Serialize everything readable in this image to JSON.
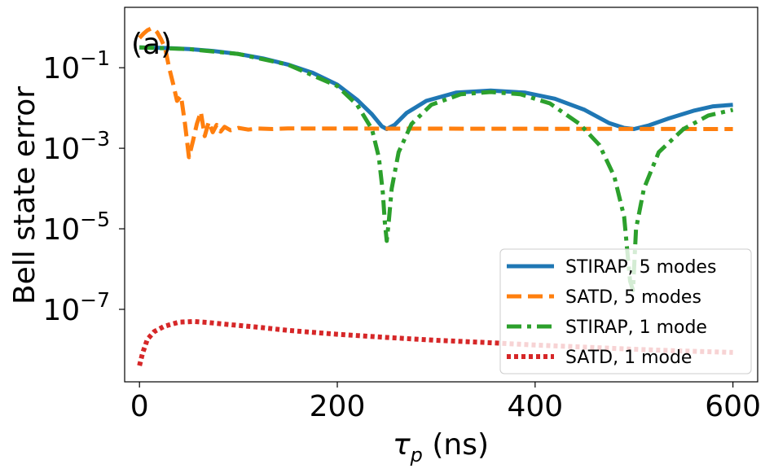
{
  "chart_data": {
    "type": "line",
    "title": "",
    "panel_label": "(a)",
    "xlabel_symbol": "τ",
    "xlabel_sub": "p",
    "xlabel_unit": " (ns)",
    "ylabel": "Bell state error",
    "yscale": "log",
    "xlim": [
      -15,
      625
    ],
    "ylim_exp": [
      -8.8,
      0.5
    ],
    "xticks": [
      0,
      200,
      400,
      600
    ],
    "xtick_labels": [
      "0",
      "200",
      "400",
      "600"
    ],
    "yticks_exp": [
      -1,
      -3,
      -5,
      -7
    ],
    "ytick_base": "10",
    "ytick_exponents": [
      "−1",
      "−3",
      "−5",
      "−7"
    ],
    "legend_position": "lower-right",
    "series": [
      {
        "name": "STIRAP, 5 modes",
        "color": "#1f77b4",
        "style": "solid",
        "points": [
          [
            0,
            0.32
          ],
          [
            25,
            0.31
          ],
          [
            50,
            0.29
          ],
          [
            75,
            0.26
          ],
          [
            100,
            0.22
          ],
          [
            125,
            0.17
          ],
          [
            150,
            0.12
          ],
          [
            175,
            0.075
          ],
          [
            200,
            0.038
          ],
          [
            220,
            0.016
          ],
          [
            235,
            0.007
          ],
          [
            245,
            0.0035
          ],
          [
            250,
            0.003
          ],
          [
            258,
            0.0038
          ],
          [
            270,
            0.0075
          ],
          [
            290,
            0.015
          ],
          [
            320,
            0.024
          ],
          [
            355,
            0.027
          ],
          [
            390,
            0.024
          ],
          [
            420,
            0.017
          ],
          [
            450,
            0.009
          ],
          [
            475,
            0.0042
          ],
          [
            490,
            0.0032
          ],
          [
            500,
            0.003
          ],
          [
            515,
            0.0037
          ],
          [
            535,
            0.0055
          ],
          [
            560,
            0.0085
          ],
          [
            580,
            0.011
          ],
          [
            600,
            0.012
          ]
        ]
      },
      {
        "name": "SATD, 5 modes",
        "color": "#ff7f0e",
        "style": "dashed",
        "points": [
          [
            0,
            0.55
          ],
          [
            4,
            0.7
          ],
          [
            8,
            0.85
          ],
          [
            12,
            0.95
          ],
          [
            15,
            0.9
          ],
          [
            18,
            0.75
          ],
          [
            22,
            0.5
          ],
          [
            26,
            0.3
          ],
          [
            30,
            0.1
          ],
          [
            34,
            0.04
          ],
          [
            38,
            0.015
          ],
          [
            42,
            0.02
          ],
          [
            46,
            0.004
          ],
          [
            50,
            0.0006
          ],
          [
            54,
            0.0015
          ],
          [
            58,
            0.004
          ],
          [
            62,
            0.008
          ],
          [
            66,
            0.002
          ],
          [
            70,
            0.0045
          ],
          [
            74,
            0.0025
          ],
          [
            78,
            0.0038
          ],
          [
            82,
            0.0026
          ],
          [
            86,
            0.0034
          ],
          [
            92,
            0.0028
          ],
          [
            100,
            0.0032
          ],
          [
            110,
            0.0029
          ],
          [
            120,
            0.0031
          ],
          [
            135,
            0.003
          ],
          [
            150,
            0.0031
          ],
          [
            600,
            0.003
          ]
        ]
      },
      {
        "name": "STIRAP, 1 mode",
        "color": "#2ca02c",
        "style": "dashdot",
        "points": [
          [
            0,
            0.32
          ],
          [
            50,
            0.29
          ],
          [
            100,
            0.22
          ],
          [
            150,
            0.12
          ],
          [
            200,
            0.035
          ],
          [
            220,
            0.012
          ],
          [
            235,
            0.003
          ],
          [
            242,
            0.0006
          ],
          [
            246,
            8e-05
          ],
          [
            248,
            1.5e-05
          ],
          [
            250,
            5e-06
          ],
          [
            252,
            1.5e-05
          ],
          [
            255,
            0.0001
          ],
          [
            262,
            0.0008
          ],
          [
            275,
            0.004
          ],
          [
            295,
            0.012
          ],
          [
            325,
            0.022
          ],
          [
            355,
            0.025
          ],
          [
            385,
            0.022
          ],
          [
            415,
            0.013
          ],
          [
            445,
            0.004
          ],
          [
            465,
            0.0012
          ],
          [
            480,
            0.0002
          ],
          [
            490,
            2e-05
          ],
          [
            496,
            5e-07
          ],
          [
            499,
            3e-07
          ],
          [
            502,
            1e-05
          ],
          [
            510,
            0.0001
          ],
          [
            525,
            0.0008
          ],
          [
            550,
            0.003
          ],
          [
            575,
            0.0065
          ],
          [
            600,
            0.009
          ]
        ]
      },
      {
        "name": "SATD, 1 mode",
        "color": "#d62728",
        "style": "dotted",
        "points": [
          [
            0,
            4e-09
          ],
          [
            3,
            8e-09
          ],
          [
            8,
            1.8e-08
          ],
          [
            15,
            2.8e-08
          ],
          [
            25,
            3.8e-08
          ],
          [
            40,
            4.8e-08
          ],
          [
            55,
            5e-08
          ],
          [
            70,
            4.7e-08
          ],
          [
            90,
            4.2e-08
          ],
          [
            120,
            3.6e-08
          ],
          [
            150,
            3e-08
          ],
          [
            200,
            2.4e-08
          ],
          [
            250,
            2e-08
          ],
          [
            300,
            1.7e-08
          ],
          [
            350,
            1.5e-08
          ],
          [
            400,
            1.3e-08
          ],
          [
            450,
            1.15e-08
          ],
          [
            500,
            1.02e-08
          ],
          [
            550,
            9.2e-09
          ],
          [
            600,
            8.5e-09
          ]
        ]
      }
    ]
  }
}
